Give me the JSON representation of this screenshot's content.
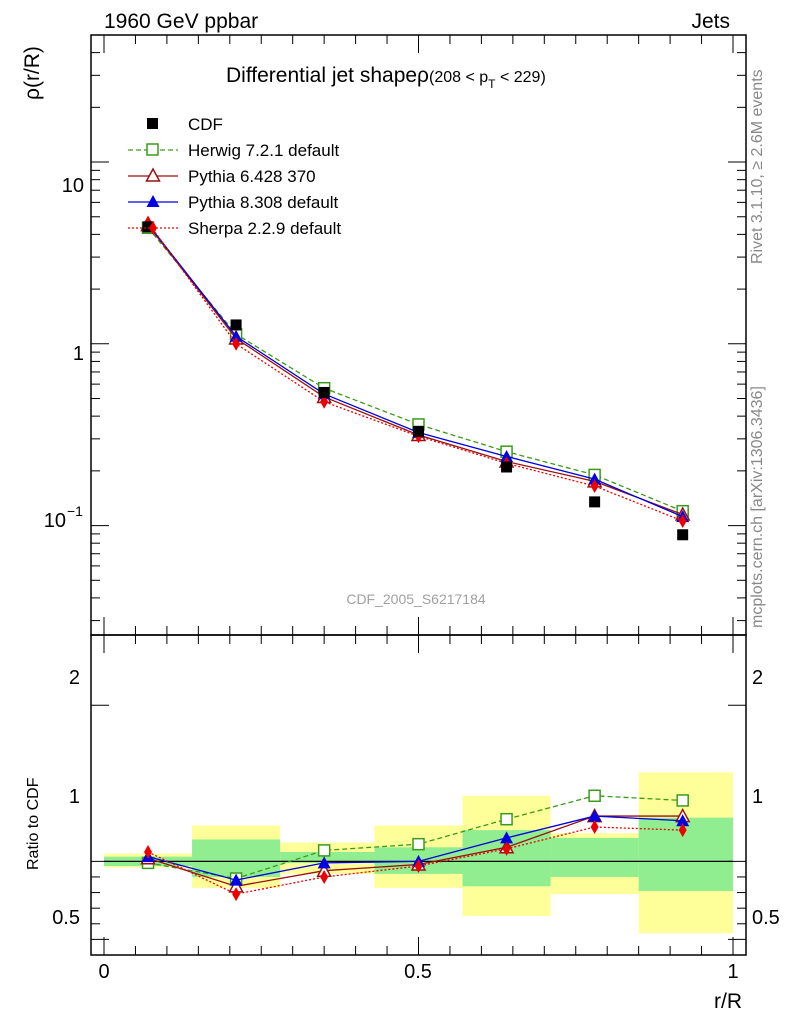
{
  "header": {
    "left": "1960 GeV ppbar",
    "right": "Jets"
  },
  "side_labels": {
    "rivet": "Rivet 3.1.10, ≥ 2.6M events",
    "mcplots": "mcplots.cern.ch [arXiv:1306.3436]"
  },
  "watermark": "CDF_2005_S6217184",
  "colors": {
    "CDF": "#000000",
    "Herwig": "#3a9a1a",
    "Pythia6": "#9a1010",
    "Pythia8": "#0000e0",
    "Sherpa": "#ee0000",
    "band_outer": "#ffff99",
    "band_inner": "#90ee90"
  },
  "chart_data": [
    {
      "type": "line",
      "title_main": "Differential jet shapeρ",
      "title_range_open": "(208 < p",
      "title_range_sub": "T",
      "title_range_close": " < 229)",
      "ylabel": "ρ(r/R)",
      "yscale": "log",
      "ylim": [
        0.025,
        50
      ],
      "xlim": [
        -0.02,
        1.0
      ],
      "y_tick_labels": [
        "10",
        "1",
        "10"
      ],
      "y_tick_exp": "−1",
      "x": [
        0.07,
        0.21,
        0.35,
        0.5,
        0.64,
        0.78,
        0.92
      ],
      "series": [
        {
          "name": "CDF",
          "key": "CDF",
          "marker": "square-filled",
          "values": [
            4.4,
            1.27,
            0.54,
            0.33,
            0.21,
            0.135,
            0.089
          ]
        },
        {
          "name": "Herwig 7.2.1 default",
          "key": "Herwig",
          "marker": "square-open",
          "dash": "dashed",
          "values": [
            4.35,
            1.13,
            0.57,
            0.36,
            0.255,
            0.19,
            0.12
          ]
        },
        {
          "name": "Pythia 6.428 370",
          "key": "Pythia6",
          "marker": "triangle-open",
          "dash": "solid",
          "values": [
            4.5,
            1.07,
            0.51,
            0.315,
            0.225,
            0.175,
            0.115
          ]
        },
        {
          "name": "Pythia 8.308 default",
          "key": "Pythia8",
          "marker": "triangle-filled",
          "dash": "solid",
          "values": [
            4.55,
            1.1,
            0.53,
            0.325,
            0.24,
            0.18,
            0.112
          ]
        },
        {
          "name": "Sherpa 2.2.9 default",
          "key": "Sherpa",
          "marker": "diamond-filled",
          "dash": "dotted",
          "values": [
            4.65,
            1.0,
            0.48,
            0.31,
            0.22,
            0.165,
            0.106
          ]
        }
      ]
    },
    {
      "type": "line",
      "ylabel": "Ratio to CDF",
      "xlabel": "r/R",
      "ylim": [
        0.4,
        2.45
      ],
      "xlim": [
        -0.02,
        1.0
      ],
      "y_tick_labels": [
        "2",
        "1",
        "0.5"
      ],
      "y_tick_values": [
        2,
        1,
        0.5
      ],
      "x_tick_labels": [
        "0",
        "0.5",
        "1"
      ],
      "x_tick_values": [
        0,
        0.5,
        1
      ],
      "bands": {
        "edges": [
          0.0,
          0.14,
          0.28,
          0.43,
          0.57,
          0.71,
          0.85,
          1.0
        ],
        "outer_low": [
          0.96,
          0.83,
          0.92,
          0.83,
          0.65,
          0.79,
          0.54
        ],
        "outer_high": [
          1.05,
          1.23,
          1.12,
          1.23,
          1.42,
          1.18,
          1.57
        ],
        "inner_low": [
          0.97,
          0.9,
          0.99,
          0.92,
          0.84,
          0.9,
          0.81
        ],
        "inner_high": [
          1.03,
          1.14,
          1.06,
          1.09,
          1.2,
          1.15,
          1.28
        ]
      },
      "x": [
        0.07,
        0.21,
        0.35,
        0.5,
        0.64,
        0.78,
        0.92
      ],
      "series": [
        {
          "name": "Herwig 7.2.1 default",
          "key": "Herwig",
          "marker": "square-open",
          "dash": "dashed",
          "values": [
            0.99,
            0.89,
            1.07,
            1.11,
            1.27,
            1.42,
            1.39
          ]
        },
        {
          "name": "Pythia 6.428 370",
          "key": "Pythia6",
          "marker": "triangle-open",
          "dash": "solid",
          "values": [
            1.02,
            0.84,
            0.94,
            0.98,
            1.09,
            1.29,
            1.29
          ]
        },
        {
          "name": "Pythia 8.308 default",
          "key": "Pythia8",
          "marker": "triangle-filled",
          "dash": "solid",
          "values": [
            1.03,
            0.88,
            0.99,
            1.0,
            1.15,
            1.29,
            1.26
          ]
        },
        {
          "name": "Sherpa 2.2.9 default",
          "key": "Sherpa",
          "marker": "diamond-filled",
          "dash": "dotted",
          "values": [
            1.06,
            0.79,
            0.9,
            0.97,
            1.08,
            1.22,
            1.2
          ]
        }
      ]
    }
  ]
}
